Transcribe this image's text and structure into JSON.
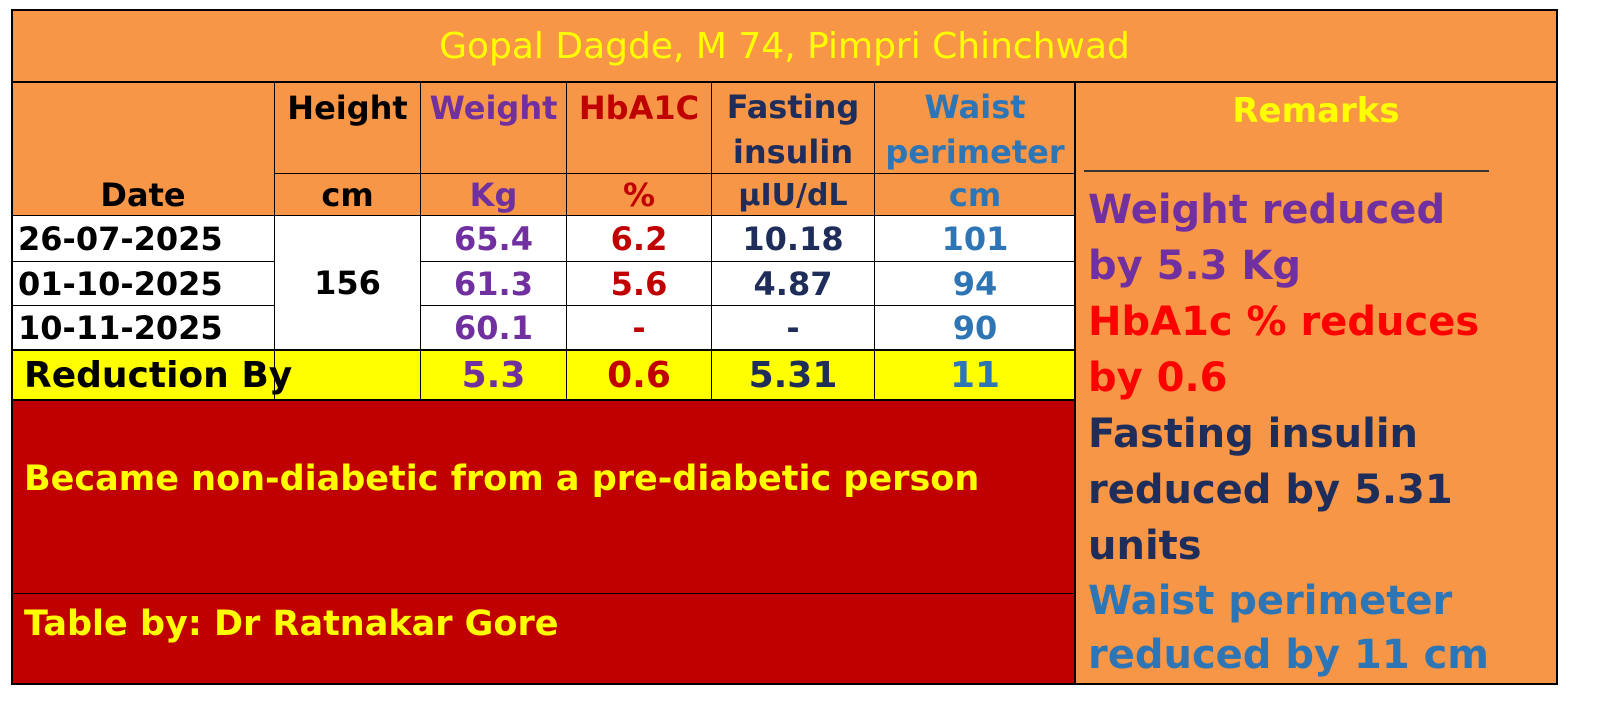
{
  "title": "Gopal Dagde, M 74, Pimpri Chinchwad",
  "headers": {
    "height": "Height",
    "weight": "Weight",
    "hba1c": "HbA1C",
    "fasting_line1": "Fasting",
    "fasting_line2": "insulin",
    "waist_line1": "Waist",
    "waist_line2": "perimeter",
    "remarks": "Remarks"
  },
  "units": {
    "date": "Date",
    "height": "cm",
    "weight": "Kg",
    "hba1c": "%",
    "fasting": "µIU/dL",
    "waist": "cm"
  },
  "height_value": "156",
  "rows": [
    {
      "date": "26-07-2025",
      "weight": "65.4",
      "hba1c": "6.2",
      "fasting": "10.18",
      "waist": "101"
    },
    {
      "date": "01-10-2025",
      "weight": "61.3",
      "hba1c": "5.6",
      "fasting": "4.87",
      "waist": "94"
    },
    {
      "date": "10-11-2025",
      "weight": "60.1",
      "hba1c": "-",
      "fasting": "-",
      "waist": "90"
    }
  ],
  "reduction": {
    "label": "Reduction By",
    "weight": "5.3",
    "hba1c": "0.6",
    "fasting": "5.31",
    "waist": "11"
  },
  "outcome": "Became non-diabetic from a pre-diabetic person",
  "credit": "Table by: Dr Ratnakar Gore",
  "remarks": {
    "weight_1": "Weight reduced",
    "weight_2": "by 5.3 Kg",
    "hba1c_1": "HbA1c % reduces",
    "hba1c_2": "by 0.6",
    "fasting_1": "Fasting insulin",
    "fasting_2": "reduced by 5.31",
    "fasting_3": "units",
    "waist_1": "Waist perimeter",
    "waist_2": "reduced by 11 cm"
  },
  "colors": {
    "orange": "#f79646",
    "yellow": "#ffff00",
    "dark_red": "#c00000",
    "purple": "#7030a0",
    "navy": "#1f2d5a",
    "blue": "#2e75b6"
  }
}
